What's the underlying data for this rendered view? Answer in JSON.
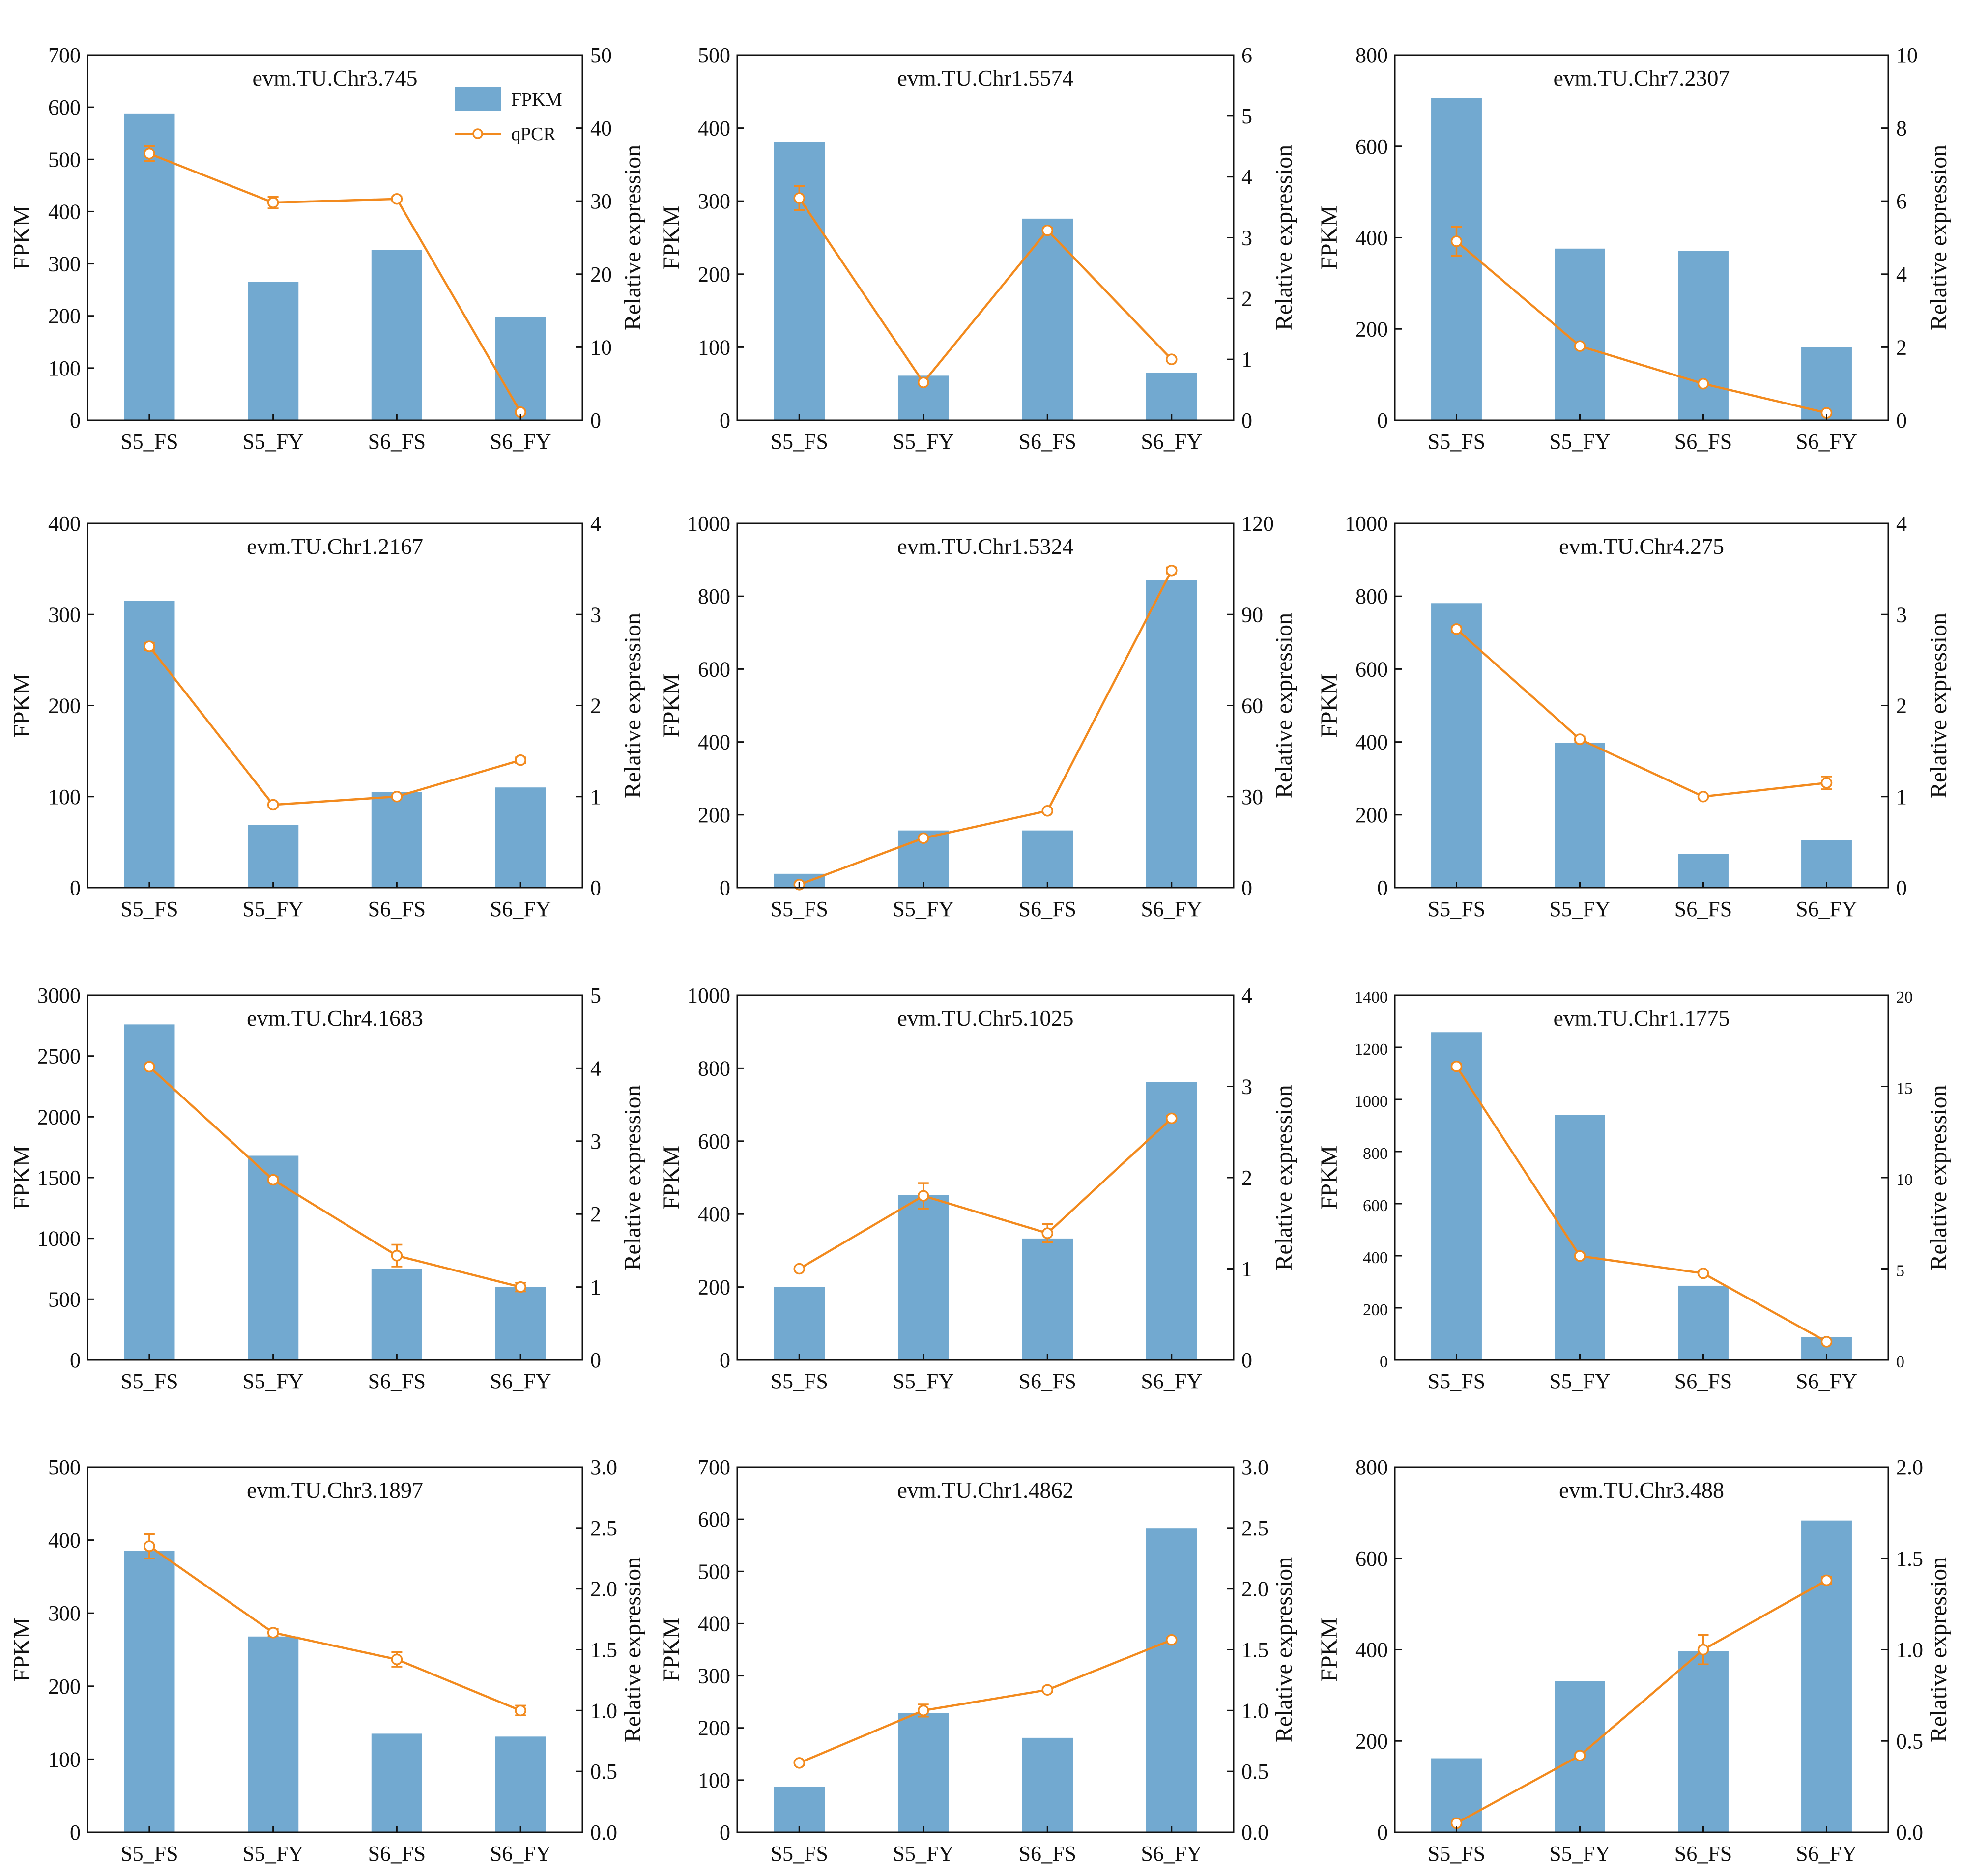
{
  "colors": {
    "bar": "#72a9d0",
    "line": "#f28a1e",
    "axis": "#111111",
    "background": "#ffffff"
  },
  "legend": {
    "bar_label": "FPKM",
    "line_label": "qPCR",
    "placement": "top-right of first panel"
  },
  "chart_data": [
    {
      "type": "bar+line",
      "title": "evm.TU.Chr3.745",
      "categories": [
        "S5_FS",
        "S5_FY",
        "S6_FS",
        "S6_FY"
      ],
      "ylabel": "FPKM",
      "y2label": "Relative expression",
      "ylim": [
        0,
        700
      ],
      "yticks": [
        0,
        100,
        200,
        300,
        400,
        500,
        600,
        700
      ],
      "y2lim": [
        0,
        50
      ],
      "y2ticks": [
        0,
        10,
        20,
        30,
        40,
        50
      ],
      "series": [
        {
          "name": "FPKM",
          "axis": "left",
          "values": [
            588,
            265,
            326,
            197
          ]
        },
        {
          "name": "qPCR",
          "axis": "right",
          "values": [
            36.5,
            29.8,
            30.3,
            1.1
          ],
          "errors": [
            1.0,
            0.8,
            0.3,
            0.2
          ]
        }
      ]
    },
    {
      "type": "bar+line",
      "title": "evm.TU.Chr1.5574",
      "categories": [
        "S5_FS",
        "S5_FY",
        "S6_FS",
        "S6_FY"
      ],
      "ylabel": "FPKM",
      "y2label": "Relative expression",
      "ylim": [
        0,
        500
      ],
      "yticks": [
        0,
        100,
        200,
        300,
        400,
        500
      ],
      "y2lim": [
        0,
        6
      ],
      "y2ticks": [
        0,
        1,
        2,
        3,
        4,
        5,
        6
      ],
      "series": [
        {
          "name": "FPKM",
          "axis": "left",
          "values": [
            381,
            61,
            276,
            65
          ]
        },
        {
          "name": "qPCR",
          "axis": "right",
          "values": [
            3.65,
            0.62,
            3.12,
            1.0
          ],
          "errors": [
            0.2,
            0.03,
            0.04,
            0.03
          ]
        }
      ]
    },
    {
      "type": "bar+line",
      "title": "evm.TU.Chr7.2307",
      "categories": [
        "S5_FS",
        "S5_FY",
        "S6_FS",
        "S6_FY"
      ],
      "ylabel": "FPKM",
      "y2label": "Relative expression",
      "ylim": [
        0,
        800
      ],
      "yticks": [
        0,
        200,
        400,
        600,
        800
      ],
      "y2lim": [
        0,
        10
      ],
      "y2ticks": [
        0,
        2,
        4,
        6,
        8,
        10
      ],
      "series": [
        {
          "name": "FPKM",
          "axis": "left",
          "values": [
            706,
            376,
            371,
            160
          ]
        },
        {
          "name": "qPCR",
          "axis": "right",
          "values": [
            4.9,
            2.03,
            1.0,
            0.2
          ],
          "errors": [
            0.4,
            0.05,
            0.03,
            0.02
          ]
        }
      ]
    },
    {
      "type": "bar+line",
      "title": "evm.TU.Chr1.2167",
      "categories": [
        "S5_FS",
        "S5_FY",
        "S6_FS",
        "S6_FY"
      ],
      "ylabel": "FPKM",
      "y2label": "Relative expression",
      "ylim": [
        0,
        400
      ],
      "yticks": [
        0,
        100,
        200,
        300,
        400
      ],
      "y2lim": [
        0,
        4
      ],
      "y2ticks": [
        0,
        1,
        2,
        3,
        4
      ],
      "series": [
        {
          "name": "FPKM",
          "axis": "left",
          "values": [
            315,
            69,
            105,
            110
          ]
        },
        {
          "name": "qPCR",
          "axis": "right",
          "values": [
            2.65,
            0.91,
            1.0,
            1.4
          ],
          "errors": [
            0.04,
            0.02,
            0.02,
            0.03
          ]
        }
      ]
    },
    {
      "type": "bar+line",
      "title": "evm.TU.Chr1.5324",
      "categories": [
        "S5_FS",
        "S5_FY",
        "S6_FS",
        "S6_FY"
      ],
      "ylabel": "FPKM",
      "y2label": "Relative expression",
      "ylim": [
        0,
        1000
      ],
      "yticks": [
        0,
        200,
        400,
        600,
        800,
        1000
      ],
      "y2lim": [
        0,
        120
      ],
      "y2ticks": [
        0,
        30,
        60,
        90,
        120
      ],
      "series": [
        {
          "name": "FPKM",
          "axis": "left",
          "values": [
            38,
            157,
            157,
            844
          ]
        },
        {
          "name": "qPCR",
          "axis": "right",
          "values": [
            1.0,
            16.3,
            25.3,
            104.5
          ],
          "errors": [
            0.2,
            0.5,
            0.5,
            1.0
          ]
        }
      ]
    },
    {
      "type": "bar+line",
      "title": "evm.TU.Chr4.275",
      "categories": [
        "S5_FS",
        "S5_FY",
        "S6_FS",
        "S6_FY"
      ],
      "ylabel": "FPKM",
      "y2label": "Relative expression",
      "ylim": [
        0,
        1000
      ],
      "yticks": [
        0,
        200,
        400,
        600,
        800,
        1000
      ],
      "y2lim": [
        0,
        4
      ],
      "y2ticks": [
        0,
        1,
        2,
        3,
        4
      ],
      "series": [
        {
          "name": "FPKM",
          "axis": "left",
          "values": [
            781,
            397,
            92,
            130
          ]
        },
        {
          "name": "qPCR",
          "axis": "right",
          "values": [
            2.84,
            1.63,
            1.0,
            1.15
          ],
          "errors": [
            0.03,
            0.03,
            0.02,
            0.07
          ]
        }
      ]
    },
    {
      "type": "bar+line",
      "title": "evm.TU.Chr4.1683",
      "categories": [
        "S5_FS",
        "S5_FY",
        "S6_FS",
        "S6_FY"
      ],
      "ylabel": "FPKM",
      "y2label": "Relative expression",
      "ylim": [
        0,
        3000
      ],
      "yticks": [
        0,
        500,
        1000,
        1500,
        2000,
        2500,
        3000
      ],
      "y2lim": [
        0,
        5
      ],
      "y2ticks": [
        0,
        1,
        2,
        3,
        4,
        5
      ],
      "series": [
        {
          "name": "FPKM",
          "axis": "left",
          "values": [
            2760,
            1680,
            750,
            600
          ]
        },
        {
          "name": "qPCR",
          "axis": "right",
          "values": [
            4.02,
            2.47,
            1.43,
            1.0
          ],
          "errors": [
            0.02,
            0.04,
            0.15,
            0.06
          ]
        }
      ]
    },
    {
      "type": "bar+line",
      "title": "evm.TU.Chr5.1025",
      "categories": [
        "S5_FS",
        "S5_FY",
        "S6_FS",
        "S6_FY"
      ],
      "ylabel": "FPKM",
      "y2label": "Relative expression",
      "ylim": [
        0,
        1000
      ],
      "yticks": [
        0,
        200,
        400,
        600,
        800,
        1000
      ],
      "y2lim": [
        0,
        4
      ],
      "y2ticks": [
        0,
        1,
        2,
        3,
        4
      ],
      "series": [
        {
          "name": "FPKM",
          "axis": "left",
          "values": [
            200,
            452,
            333,
            762
          ]
        },
        {
          "name": "qPCR",
          "axis": "right",
          "values": [
            1.0,
            1.8,
            1.39,
            2.65
          ],
          "errors": [
            0.02,
            0.14,
            0.1,
            0.03
          ]
        }
      ]
    },
    {
      "type": "bar+line",
      "title": "evm.TU.Chr1.1775",
      "categories": [
        "S5_FS",
        "S5_FY",
        "S6_FS",
        "S6_FY"
      ],
      "ylabel": "FPKM",
      "y2label": "Relative expression",
      "ylim": [
        0,
        1400
      ],
      "yticks": [
        0,
        200,
        400,
        600,
        800,
        1000,
        1200,
        1400
      ],
      "y2lim": [
        0,
        20
      ],
      "y2ticks": [
        0,
        5,
        10,
        15,
        20
      ],
      "series": [
        {
          "name": "FPKM",
          "axis": "left",
          "values": [
            1258,
            940,
            285,
            87
          ]
        },
        {
          "name": "qPCR",
          "axis": "right",
          "values": [
            16.1,
            5.7,
            4.75,
            1.0
          ],
          "errors": [
            0.15,
            0.1,
            0.1,
            0.05
          ]
        }
      ]
    },
    {
      "type": "bar+line",
      "title": "evm.TU.Chr3.1897",
      "categories": [
        "S5_FS",
        "S5_FY",
        "S6_FS",
        "S6_FY"
      ],
      "ylabel": "FPKM",
      "y2label": "Relative expression",
      "ylim": [
        0,
        500
      ],
      "yticks": [
        0,
        100,
        200,
        300,
        400,
        500
      ],
      "y2lim": [
        0,
        3.0
      ],
      "y2ticks": [
        0.0,
        0.5,
        1.0,
        1.5,
        2.0,
        2.5,
        3.0
      ],
      "y2tick_labels": [
        "0.0",
        "0.5",
        "1.0",
        "1.5",
        "2.0",
        "2.5",
        "3.0"
      ],
      "series": [
        {
          "name": "FPKM",
          "axis": "left",
          "values": [
            385,
            268,
            135,
            131
          ]
        },
        {
          "name": "qPCR",
          "axis": "right",
          "values": [
            2.35,
            1.64,
            1.42,
            1.0
          ],
          "errors": [
            0.1,
            0.03,
            0.06,
            0.04
          ]
        }
      ]
    },
    {
      "type": "bar+line",
      "title": "evm.TU.Chr1.4862",
      "categories": [
        "S5_FS",
        "S5_FY",
        "S6_FS",
        "S6_FY"
      ],
      "ylabel": "FPKM",
      "y2label": "Relative expression",
      "ylim": [
        0,
        700
      ],
      "yticks": [
        0,
        100,
        200,
        300,
        400,
        500,
        600,
        700
      ],
      "y2lim": [
        0,
        3.0
      ],
      "y2ticks": [
        0.0,
        0.5,
        1.0,
        1.5,
        2.0,
        2.5,
        3.0
      ],
      "y2tick_labels": [
        "0.0",
        "0.5",
        "1.0",
        "1.5",
        "2.0",
        "2.5",
        "3.0"
      ],
      "series": [
        {
          "name": "FPKM",
          "axis": "left",
          "values": [
            87,
            228,
            181,
            583
          ]
        },
        {
          "name": "qPCR",
          "axis": "right",
          "values": [
            0.57,
            1.0,
            1.17,
            1.58
          ],
          "errors": [
            0.02,
            0.05,
            0.02,
            0.02
          ]
        }
      ]
    },
    {
      "type": "bar+line",
      "title": "evm.TU.Chr3.488",
      "categories": [
        "S5_FS",
        "S5_FY",
        "S6_FS",
        "S6_FY"
      ],
      "ylabel": "FPKM",
      "y2label": "Relative expression",
      "ylim": [
        0,
        800
      ],
      "yticks": [
        0,
        200,
        400,
        600,
        800
      ],
      "y2lim": [
        0,
        2.0
      ],
      "y2ticks": [
        0.0,
        0.5,
        1.0,
        1.5,
        2.0
      ],
      "y2tick_labels": [
        "0.0",
        "0.5",
        "1.0",
        "1.5",
        "2.0"
      ],
      "series": [
        {
          "name": "FPKM",
          "axis": "left",
          "values": [
            162,
            331,
            397,
            683
          ]
        },
        {
          "name": "qPCR",
          "axis": "right",
          "values": [
            0.05,
            0.42,
            1.0,
            1.38
          ],
          "errors": [
            0.01,
            0.01,
            0.08,
            0.02
          ]
        }
      ]
    }
  ]
}
